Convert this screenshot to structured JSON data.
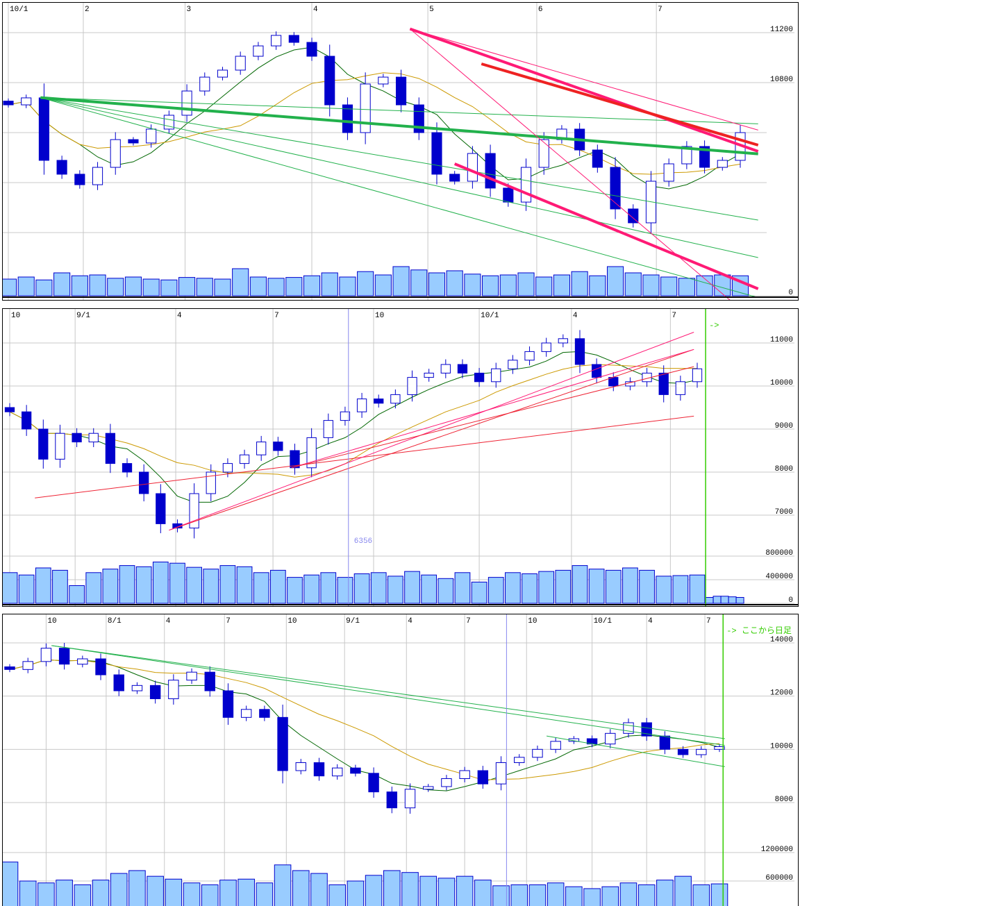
{
  "colors": {
    "up_body": "#ffffff",
    "down_body": "#0000cc",
    "candle_edge": "#0000cc",
    "volume_fill": "#99ccff",
    "volume_edge": "#0000cc",
    "grid": "#c8c8c8",
    "ma_short": "#006600",
    "ma_long": "#cc9900",
    "marker_line": "#33cc00",
    "cursor_line": "#8888ee"
  },
  "chart_data": [
    {
      "type": "candlestick",
      "xticks": [
        {
          "label": "10/1",
          "index": 0
        },
        {
          "label": "2",
          "index": 4.2
        },
        {
          "label": "3",
          "index": 9.9
        },
        {
          "label": "4",
          "index": 17
        },
        {
          "label": "5",
          "index": 23.5
        },
        {
          "label": "6",
          "index": 29.6
        },
        {
          "label": "7",
          "index": 36.3
        }
      ],
      "yticks": [
        {
          "label": "11200",
          "value": 11200
        },
        {
          "label": "10800",
          "value": 10800
        }
      ],
      "extra_grid": [
        10400,
        10000,
        9600
      ],
      "volume_ticks": [
        {
          "label": "0",
          "value": 0
        }
      ],
      "volume_max": 100,
      "closes": [
        10622,
        10678,
        10178,
        10067,
        9983,
        10122,
        10344,
        10317,
        10428,
        10539,
        10733,
        10844,
        10900,
        11011,
        11094,
        11178,
        11122,
        11011,
        10622,
        10400,
        10789,
        10844,
        10622,
        10400,
        10067,
        10011,
        10233,
        9956,
        9844,
        10122,
        10344,
        10428,
        10261,
        10122,
        9789,
        9678,
        10011,
        10150,
        10289,
        10122,
        10178,
        10400
      ],
      "volumes": [
        40,
        45,
        38,
        55,
        48,
        50,
        42,
        45,
        40,
        38,
        44,
        42,
        40,
        65,
        45,
        42,
        44,
        48,
        55,
        45,
        58,
        50,
        70,
        62,
        55,
        60,
        52,
        48,
        50,
        55,
        45,
        50,
        58,
        48,
        70,
        55,
        50,
        45,
        42,
        48,
        50,
        48
      ],
      "trendlines": [
        {
          "from": [
            1.8,
            10680
          ],
          "to": [
            42,
            10230
          ],
          "color": "#22b14c",
          "width": 4
        },
        {
          "from": [
            1.8,
            10680
          ],
          "to": [
            42,
            10470
          ],
          "color": "#22b14c",
          "width": 1
        },
        {
          "from": [
            1.8,
            10680
          ],
          "to": [
            42,
            9700
          ],
          "color": "#22b14c",
          "width": 1
        },
        {
          "from": [
            1.8,
            10680
          ],
          "to": [
            42,
            9400
          ],
          "color": "#22b14c",
          "width": 1
        },
        {
          "from": [
            1.8,
            10680
          ],
          "to": [
            42,
            9080
          ],
          "color": "#22b14c",
          "width": 1
        },
        {
          "from": [
            22.5,
            11230
          ],
          "to": [
            42,
            10250
          ],
          "color": "#ff1a75",
          "width": 4
        },
        {
          "from": [
            25,
            10150
          ],
          "to": [
            42,
            9150
          ],
          "color": "#ff1a75",
          "width": 4
        },
        {
          "from": [
            26.5,
            10950
          ],
          "to": [
            42,
            10300
          ],
          "color": "#ee2222",
          "width": 4
        },
        {
          "from": [
            22.5,
            11230
          ],
          "to": [
            42,
            10420
          ],
          "color": "#ff1a75",
          "width": 1
        },
        {
          "from": [
            22.5,
            11230
          ],
          "to": [
            40.5,
            9050
          ],
          "color": "#ff1a75",
          "width": 1
        }
      ]
    },
    {
      "type": "candlestick",
      "xticks": [
        {
          "label": "10",
          "index": 0
        },
        {
          "label": "9/1",
          "index": 3.9
        },
        {
          "label": "4",
          "index": 9.9
        },
        {
          "label": "7",
          "index": 15.7
        },
        {
          "label": "10",
          "index": 21.7
        },
        {
          "label": "10/1",
          "index": 28
        },
        {
          "label": "4",
          "index": 33.5
        },
        {
          "label": "7",
          "index": 39.4
        }
      ],
      "yticks": [
        {
          "label": "11000",
          "value": 11000
        },
        {
          "label": "10000",
          "value": 10000
        },
        {
          "label": "9000",
          "value": 9000
        },
        {
          "label": "8000",
          "value": 8000
        },
        {
          "label": "7000",
          "value": 7000
        }
      ],
      "volume_ticks": [
        {
          "label": "800000",
          "value": 800000
        },
        {
          "label": "400000",
          "value": 400000
        },
        {
          "label": "0",
          "value": 0
        }
      ],
      "volume_max": 1000000,
      "closes": [
        9400,
        9000,
        8300,
        8900,
        8700,
        8900,
        8200,
        8000,
        7500,
        6800,
        6700,
        7500,
        8000,
        8200,
        8400,
        8700,
        8500,
        8100,
        8800,
        9200,
        9400,
        9700,
        9600,
        9800,
        10200,
        10300,
        10500,
        10300,
        10100,
        10400,
        10600,
        10800,
        11000,
        11100,
        10500,
        10200,
        10000,
        10100,
        10300,
        9800,
        10100,
        10400
      ],
      "volumes": [
        520000,
        480000,
        600000,
        560000,
        300000,
        520000,
        580000,
        640000,
        620000,
        700000,
        680000,
        610000,
        580000,
        640000,
        620000,
        520000,
        560000,
        440000,
        480000,
        520000,
        440000,
        500000,
        520000,
        460000,
        540000,
        480000,
        420000,
        520000,
        360000,
        440000,
        520000,
        500000,
        540000,
        560000,
        640000,
        580000,
        560000,
        600000,
        560000,
        460000,
        470000,
        480000
      ],
      "after_marker_volumes": [
        100000,
        120000,
        120000,
        110000,
        100000
      ],
      "marker_label": "->",
      "cursor_label": "6356",
      "marker_index": 41.5,
      "cursor_index": 20.2,
      "trendlines": [
        {
          "from": [
            1.5,
            7400
          ],
          "to": [
            40.8,
            9300
          ],
          "color": "#ee2233",
          "width": 1
        },
        {
          "from": [
            9.5,
            6650
          ],
          "to": [
            40.8,
            10850
          ],
          "color": "#ee2233",
          "width": 1
        },
        {
          "from": [
            9.5,
            6650
          ],
          "to": [
            40.8,
            11250
          ],
          "color": "#ff1a75",
          "width": 1
        },
        {
          "from": [
            16.8,
            8100
          ],
          "to": [
            40.8,
            10850
          ],
          "color": "#ff1a75",
          "width": 1
        },
        {
          "from": [
            16.8,
            8100
          ],
          "to": [
            40.8,
            10450
          ],
          "color": "#ee2233",
          "width": 1
        }
      ]
    },
    {
      "type": "candlestick",
      "xticks": [
        {
          "label": "10",
          "index": 2
        },
        {
          "label": "8/1",
          "index": 5.3
        },
        {
          "label": "4",
          "index": 8.5
        },
        {
          "label": "7",
          "index": 11.8
        },
        {
          "label": "10",
          "index": 15.2
        },
        {
          "label": "9/1",
          "index": 18.4
        },
        {
          "label": "4",
          "index": 21.8
        },
        {
          "label": "7",
          "index": 25
        },
        {
          "label": "10",
          "index": 28.4
        },
        {
          "label": "10/1",
          "index": 32
        },
        {
          "label": "4",
          "index": 35
        },
        {
          "label": "7",
          "index": 38.2
        }
      ],
      "yticks": [
        {
          "label": "14000",
          "value": 14000
        },
        {
          "label": "12000",
          "value": 12000
        },
        {
          "label": "10000",
          "value": 10000
        },
        {
          "label": "8000",
          "value": 8000
        }
      ],
      "volume_ticks": [
        {
          "label": "1200000",
          "value": 1200000
        },
        {
          "label": "600000",
          "value": 600000
        }
      ],
      "volume_max": 1400000,
      "closes": [
        13000,
        13300,
        13800,
        13200,
        13400,
        12800,
        12200,
        12400,
        11900,
        12600,
        12900,
        12200,
        11200,
        11500,
        11200,
        9200,
        9500,
        9000,
        9300,
        9100,
        8400,
        7800,
        8500,
        8600,
        8900,
        9200,
        8700,
        9500,
        9700,
        10000,
        10300,
        10400,
        10200,
        10600,
        11000,
        10500,
        10000,
        9800,
        10000,
        10100
      ],
      "volumes": [
        1000000,
        600000,
        560000,
        620000,
        520000,
        620000,
        760000,
        820000,
        700000,
        640000,
        560000,
        520000,
        620000,
        640000,
        560000,
        940000,
        820000,
        760000,
        520000,
        600000,
        720000,
        820000,
        780000,
        700000,
        660000,
        700000,
        620000,
        500000,
        520000,
        520000,
        560000,
        480000,
        440000,
        480000,
        560000,
        520000,
        620000,
        700000,
        520000,
        540000
      ],
      "marker_label": "-> ここから日足",
      "marker_index": 39.2,
      "cursor_index": 27.3,
      "trendlines": [
        {
          "from": [
            2.3,
            13900
          ],
          "to": [
            39.3,
            10400
          ],
          "color": "#22b14c",
          "width": 1
        },
        {
          "from": [
            2.3,
            13900
          ],
          "to": [
            39.3,
            10150
          ],
          "color": "#22b14c",
          "width": 1
        },
        {
          "from": [
            29.5,
            10500
          ],
          "to": [
            39.3,
            9350
          ],
          "color": "#22b14c",
          "width": 1
        }
      ]
    }
  ]
}
